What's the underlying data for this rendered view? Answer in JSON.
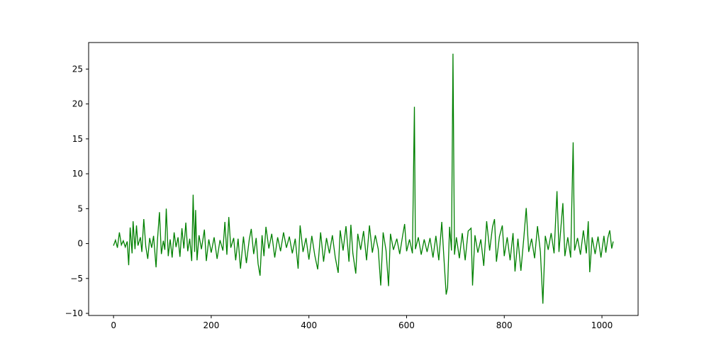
{
  "chart_data": {
    "type": "line",
    "title": "",
    "xlabel": "",
    "ylabel": "",
    "xlim": [
      -51,
      1074
    ],
    "ylim": [
      -10.3,
      28.8
    ],
    "xticks": [
      0,
      200,
      400,
      600,
      800,
      1000
    ],
    "yticks": [
      -10,
      -5,
      0,
      5,
      10,
      15,
      20,
      25
    ],
    "grid": false,
    "line_color": "#008000",
    "points": [
      [
        0,
        -0.3
      ],
      [
        4,
        0.5
      ],
      [
        8,
        -0.6
      ],
      [
        12,
        1.6
      ],
      [
        16,
        -0.2
      ],
      [
        20,
        0.4
      ],
      [
        24,
        -0.5
      ],
      [
        28,
        0.3
      ],
      [
        31,
        -3.1
      ],
      [
        34,
        2.3
      ],
      [
        38,
        -1.4
      ],
      [
        40,
        3.2
      ],
      [
        44,
        -0.8
      ],
      [
        47,
        2.6
      ],
      [
        50,
        -0.3
      ],
      [
        55,
        0.9
      ],
      [
        58,
        -1.2
      ],
      [
        62,
        3.5
      ],
      [
        66,
        -0.4
      ],
      [
        70,
        -2.2
      ],
      [
        74,
        0.8
      ],
      [
        78,
        -0.6
      ],
      [
        82,
        1.1
      ],
      [
        87,
        -3.4
      ],
      [
        90,
        0.5
      ],
      [
        94,
        4.5
      ],
      [
        98,
        -1.5
      ],
      [
        102,
        0.4
      ],
      [
        105,
        -0.9
      ],
      [
        108,
        5.0
      ],
      [
        112,
        -1.8
      ],
      [
        116,
        0.6
      ],
      [
        120,
        -2.0
      ],
      [
        124,
        1.6
      ],
      [
        128,
        -0.5
      ],
      [
        132,
        0.9
      ],
      [
        136,
        -1.9
      ],
      [
        140,
        2.2
      ],
      [
        144,
        -0.7
      ],
      [
        148,
        3.0
      ],
      [
        152,
        -1.1
      ],
      [
        156,
        0.7
      ],
      [
        160,
        -2.5
      ],
      [
        163,
        7.0
      ],
      [
        166,
        -1.2
      ],
      [
        168,
        4.8
      ],
      [
        171,
        -2.4
      ],
      [
        175,
        1.2
      ],
      [
        180,
        -0.8
      ],
      [
        186,
        2.0
      ],
      [
        190,
        -2.5
      ],
      [
        195,
        0.6
      ],
      [
        200,
        -1.3
      ],
      [
        206,
        0.9
      ],
      [
        212,
        -2.2
      ],
      [
        218,
        0.5
      ],
      [
        224,
        -1.0
      ],
      [
        228,
        3.1
      ],
      [
        232,
        -1.6
      ],
      [
        236,
        3.8
      ],
      [
        240,
        -0.6
      ],
      [
        246,
        0.8
      ],
      [
        250,
        -2.4
      ],
      [
        255,
        0.7
      ],
      [
        260,
        -3.6
      ],
      [
        266,
        1.0
      ],
      [
        272,
        -2.8
      ],
      [
        278,
        0.6
      ],
      [
        282,
        2.1
      ],
      [
        287,
        -1.5
      ],
      [
        292,
        0.8
      ],
      [
        296,
        -2.9
      ],
      [
        300,
        -4.6
      ],
      [
        304,
        1.2
      ],
      [
        308,
        -1.8
      ],
      [
        312,
        2.4
      ],
      [
        318,
        -0.7
      ],
      [
        324,
        1.4
      ],
      [
        330,
        -2.0
      ],
      [
        336,
        0.9
      ],
      [
        342,
        -1.1
      ],
      [
        348,
        1.6
      ],
      [
        354,
        -0.6
      ],
      [
        360,
        1.0
      ],
      [
        366,
        -1.4
      ],
      [
        372,
        0.7
      ],
      [
        378,
        -3.6
      ],
      [
        382,
        2.6
      ],
      [
        388,
        -1.2
      ],
      [
        394,
        0.8
      ],
      [
        400,
        -2.3
      ],
      [
        406,
        1.1
      ],
      [
        412,
        -1.7
      ],
      [
        418,
        -3.7
      ],
      [
        424,
        1.6
      ],
      [
        430,
        -2.6
      ],
      [
        436,
        0.8
      ],
      [
        442,
        -1.4
      ],
      [
        448,
        1.2
      ],
      [
        454,
        -2.0
      ],
      [
        460,
        -4.2
      ],
      [
        464,
        1.9
      ],
      [
        470,
        -1.0
      ],
      [
        476,
        2.5
      ],
      [
        482,
        -2.6
      ],
      [
        486,
        2.7
      ],
      [
        490,
        -1.4
      ],
      [
        496,
        -4.3
      ],
      [
        500,
        1.4
      ],
      [
        506,
        -0.9
      ],
      [
        512,
        1.8
      ],
      [
        518,
        -2.4
      ],
      [
        524,
        2.6
      ],
      [
        530,
        -1.3
      ],
      [
        536,
        1.2
      ],
      [
        542,
        -0.8
      ],
      [
        547,
        -6.0
      ],
      [
        552,
        1.6
      ],
      [
        558,
        -1.0
      ],
      [
        563,
        -6.1
      ],
      [
        567,
        1.4
      ],
      [
        573,
        -0.9
      ],
      [
        580,
        0.7
      ],
      [
        586,
        -1.5
      ],
      [
        592,
        1.2
      ],
      [
        596,
        2.8
      ],
      [
        600,
        -1.1
      ],
      [
        606,
        0.6
      ],
      [
        612,
        -1.4
      ],
      [
        616,
        19.6
      ],
      [
        618,
        -0.8
      ],
      [
        624,
        0.9
      ],
      [
        630,
        -1.6
      ],
      [
        636,
        0.6
      ],
      [
        642,
        -1.2
      ],
      [
        648,
        0.8
      ],
      [
        654,
        -2.0
      ],
      [
        660,
        1.1
      ],
      [
        666,
        -2.4
      ],
      [
        672,
        3.1
      ],
      [
        676,
        -1.5
      ],
      [
        681,
        -7.3
      ],
      [
        684,
        -6.3
      ],
      [
        688,
        2.4
      ],
      [
        692,
        -1.0
      ],
      [
        695,
        27.2
      ],
      [
        698,
        -1.6
      ],
      [
        702,
        0.9
      ],
      [
        708,
        -2.1
      ],
      [
        714,
        1.5
      ],
      [
        720,
        -2.4
      ],
      [
        726,
        1.8
      ],
      [
        732,
        2.2
      ],
      [
        735,
        -6.0
      ],
      [
        740,
        1.2
      ],
      [
        746,
        -1.3
      ],
      [
        752,
        0.6
      ],
      [
        758,
        -3.2
      ],
      [
        764,
        3.2
      ],
      [
        770,
        -1.0
      ],
      [
        776,
        2.4
      ],
      [
        780,
        3.5
      ],
      [
        784,
        -2.6
      ],
      [
        790,
        1.0
      ],
      [
        796,
        2.6
      ],
      [
        800,
        -1.8
      ],
      [
        806,
        0.9
      ],
      [
        812,
        -2.4
      ],
      [
        818,
        1.5
      ],
      [
        822,
        -4.0
      ],
      [
        828,
        0.7
      ],
      [
        834,
        -3.9
      ],
      [
        840,
        0.8
      ],
      [
        845,
        5.1
      ],
      [
        850,
        -1.2
      ],
      [
        856,
        0.7
      ],
      [
        862,
        -2.1
      ],
      [
        868,
        2.5
      ],
      [
        874,
        -1.2
      ],
      [
        879,
        -8.6
      ],
      [
        884,
        1.1
      ],
      [
        890,
        -0.9
      ],
      [
        896,
        1.5
      ],
      [
        902,
        -1.4
      ],
      [
        908,
        7.5
      ],
      [
        912,
        -1.2
      ],
      [
        916,
        2.4
      ],
      [
        920,
        5.8
      ],
      [
        924,
        -1.8
      ],
      [
        930,
        0.9
      ],
      [
        936,
        -2.0
      ],
      [
        941,
        14.5
      ],
      [
        944,
        -1.0
      ],
      [
        950,
        0.8
      ],
      [
        956,
        -1.6
      ],
      [
        962,
        1.9
      ],
      [
        968,
        -1.4
      ],
      [
        972,
        3.2
      ],
      [
        975,
        -4.1
      ],
      [
        980,
        0.9
      ],
      [
        986,
        -1.5
      ],
      [
        992,
        1.0
      ],
      [
        998,
        -2.0
      ],
      [
        1004,
        1.1
      ],
      [
        1008,
        -1.3
      ],
      [
        1012,
        0.8
      ],
      [
        1016,
        1.9
      ],
      [
        1020,
        -0.7
      ],
      [
        1023,
        0.3
      ]
    ]
  }
}
